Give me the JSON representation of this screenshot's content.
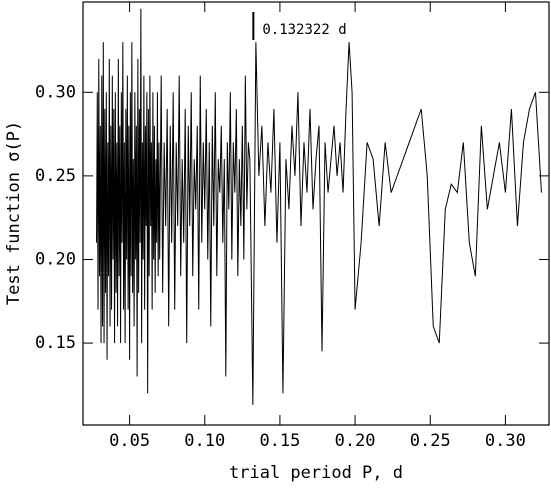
{
  "chart_data": {
    "type": "line",
    "x_label": "trial period P, d",
    "y_label": "Test function σ(P)",
    "annotation": {
      "text": "0.132322 d",
      "x": 0.132322
    },
    "color": "#000000",
    "xlim": [
      0.019,
      0.329
    ],
    "ylim": [
      0.101,
      0.354
    ],
    "xticks": [
      {
        "value": 0.05,
        "label": "0.05"
      },
      {
        "value": 0.1,
        "label": "0.10"
      },
      0.15,
      {
        "value": 0.2,
        "label": "0.20"
      },
      0.25,
      {
        "value": 0.3,
        "label": "0.30"
      }
    ],
    "yticks": [
      0.15,
      {
        "value": 0.2,
        "label": "0.20"
      },
      0.25,
      {
        "value": 0.3,
        "label": "0.30"
      }
    ],
    "x": [
      0.028,
      0.0285,
      0.029,
      0.0295,
      0.03,
      0.0305,
      0.031,
      0.0315,
      0.032,
      0.0325,
      0.033,
      0.0335,
      0.034,
      0.0345,
      0.035,
      0.0355,
      0.036,
      0.0365,
      0.037,
      0.0375,
      0.038,
      0.0385,
      0.039,
      0.0395,
      0.04,
      0.0405,
      0.041,
      0.0415,
      0.042,
      0.0425,
      0.043,
      0.0435,
      0.044,
      0.0445,
      0.045,
      0.0455,
      0.046,
      0.0465,
      0.047,
      0.0475,
      0.048,
      0.0485,
      0.049,
      0.0495,
      0.05,
      0.0505,
      0.051,
      0.0515,
      0.052,
      0.0525,
      0.053,
      0.0535,
      0.054,
      0.0545,
      0.055,
      0.0555,
      0.056,
      0.0565,
      0.057,
      0.0575,
      0.058,
      0.0585,
      0.059,
      0.0595,
      0.06,
      0.0605,
      0.061,
      0.0615,
      0.062,
      0.0625,
      0.063,
      0.0635,
      0.064,
      0.0645,
      0.065,
      0.0655,
      0.066,
      0.0665,
      0.067,
      0.0675,
      0.068,
      0.0685,
      0.069,
      0.0695,
      0.07,
      0.071,
      0.072,
      0.073,
      0.074,
      0.075,
      0.076,
      0.077,
      0.078,
      0.079,
      0.08,
      0.081,
      0.082,
      0.083,
      0.084,
      0.085,
      0.086,
      0.087,
      0.088,
      0.089,
      0.09,
      0.091,
      0.092,
      0.093,
      0.094,
      0.095,
      0.096,
      0.097,
      0.098,
      0.099,
      0.1,
      0.101,
      0.102,
      0.103,
      0.104,
      0.105,
      0.106,
      0.107,
      0.108,
      0.109,
      0.11,
      0.111,
      0.112,
      0.113,
      0.114,
      0.115,
      0.116,
      0.117,
      0.118,
      0.119,
      0.12,
      0.121,
      0.122,
      0.123,
      0.124,
      0.125,
      0.126,
      0.127,
      0.128,
      0.129,
      0.13,
      0.132,
      0.134,
      0.136,
      0.138,
      0.14,
      0.142,
      0.144,
      0.146,
      0.148,
      0.15,
      0.152,
      0.154,
      0.156,
      0.158,
      0.16,
      0.162,
      0.164,
      0.166,
      0.168,
      0.17,
      0.172,
      0.174,
      0.176,
      0.178,
      0.18,
      0.182,
      0.184,
      0.186,
      0.188,
      0.19,
      0.192,
      0.194,
      0.196,
      0.198,
      0.2,
      0.204,
      0.208,
      0.212,
      0.216,
      0.22,
      0.224,
      0.228,
      0.232,
      0.236,
      0.24,
      0.244,
      0.248,
      0.252,
      0.256,
      0.26,
      0.264,
      0.268,
      0.272,
      0.276,
      0.28,
      0.284,
      0.288,
      0.292,
      0.296,
      0.3,
      0.304,
      0.308,
      0.312,
      0.316,
      0.32,
      0.324
    ],
    "values": [
      0.21,
      0.3,
      0.17,
      0.32,
      0.19,
      0.28,
      0.15,
      0.31,
      0.16,
      0.33,
      0.15,
      0.29,
      0.18,
      0.3,
      0.14,
      0.27,
      0.19,
      0.32,
      0.16,
      0.28,
      0.17,
      0.31,
      0.2,
      0.29,
      0.15,
      0.3,
      0.18,
      0.27,
      0.16,
      0.32,
      0.19,
      0.28,
      0.15,
      0.3,
      0.21,
      0.33,
      0.17,
      0.27,
      0.15,
      0.29,
      0.2,
      0.31,
      0.17,
      0.28,
      0.14,
      0.3,
      0.19,
      0.33,
      0.18,
      0.26,
      0.16,
      0.3,
      0.2,
      0.28,
      0.13,
      0.32,
      0.18,
      0.29,
      0.21,
      0.35,
      0.15,
      0.27,
      0.2,
      0.31,
      0.17,
      0.28,
      0.22,
      0.3,
      0.12,
      0.29,
      0.19,
      0.31,
      0.22,
      0.27,
      0.17,
      0.3,
      0.2,
      0.28,
      0.18,
      0.26,
      0.21,
      0.3,
      0.19,
      0.27,
      0.2,
      0.31,
      0.18,
      0.27,
      0.22,
      0.29,
      0.16,
      0.28,
      0.21,
      0.3,
      0.17,
      0.27,
      0.22,
      0.31,
      0.19,
      0.26,
      0.21,
      0.29,
      0.15,
      0.28,
      0.22,
      0.3,
      0.19,
      0.26,
      0.23,
      0.28,
      0.17,
      0.31,
      0.21,
      0.27,
      0.23,
      0.29,
      0.2,
      0.27,
      0.16,
      0.28,
      0.22,
      0.3,
      0.19,
      0.26,
      0.24,
      0.28,
      0.21,
      0.26,
      0.13,
      0.27,
      0.23,
      0.3,
      0.2,
      0.27,
      0.24,
      0.29,
      0.19,
      0.26,
      0.22,
      0.28,
      0.2,
      0.31,
      0.23,
      0.27,
      0.26,
      0.113,
      0.33,
      0.25,
      0.28,
      0.22,
      0.27,
      0.24,
      0.29,
      0.21,
      0.27,
      0.12,
      0.26,
      0.23,
      0.28,
      0.25,
      0.3,
      0.22,
      0.27,
      0.24,
      0.29,
      0.23,
      0.26,
      0.28,
      0.145,
      0.27,
      0.24,
      0.26,
      0.28,
      0.25,
      0.27,
      0.24,
      0.29,
      0.33,
      0.3,
      0.17,
      0.21,
      0.27,
      0.26,
      0.22,
      0.27,
      0.24,
      0.25,
      0.26,
      0.27,
      0.28,
      0.29,
      0.25,
      0.16,
      0.15,
      0.23,
      0.245,
      0.24,
      0.27,
      0.21,
      0.19,
      0.28,
      0.23,
      0.25,
      0.27,
      0.24,
      0.29,
      0.22,
      0.27,
      0.29,
      0.3,
      0.24
    ]
  }
}
